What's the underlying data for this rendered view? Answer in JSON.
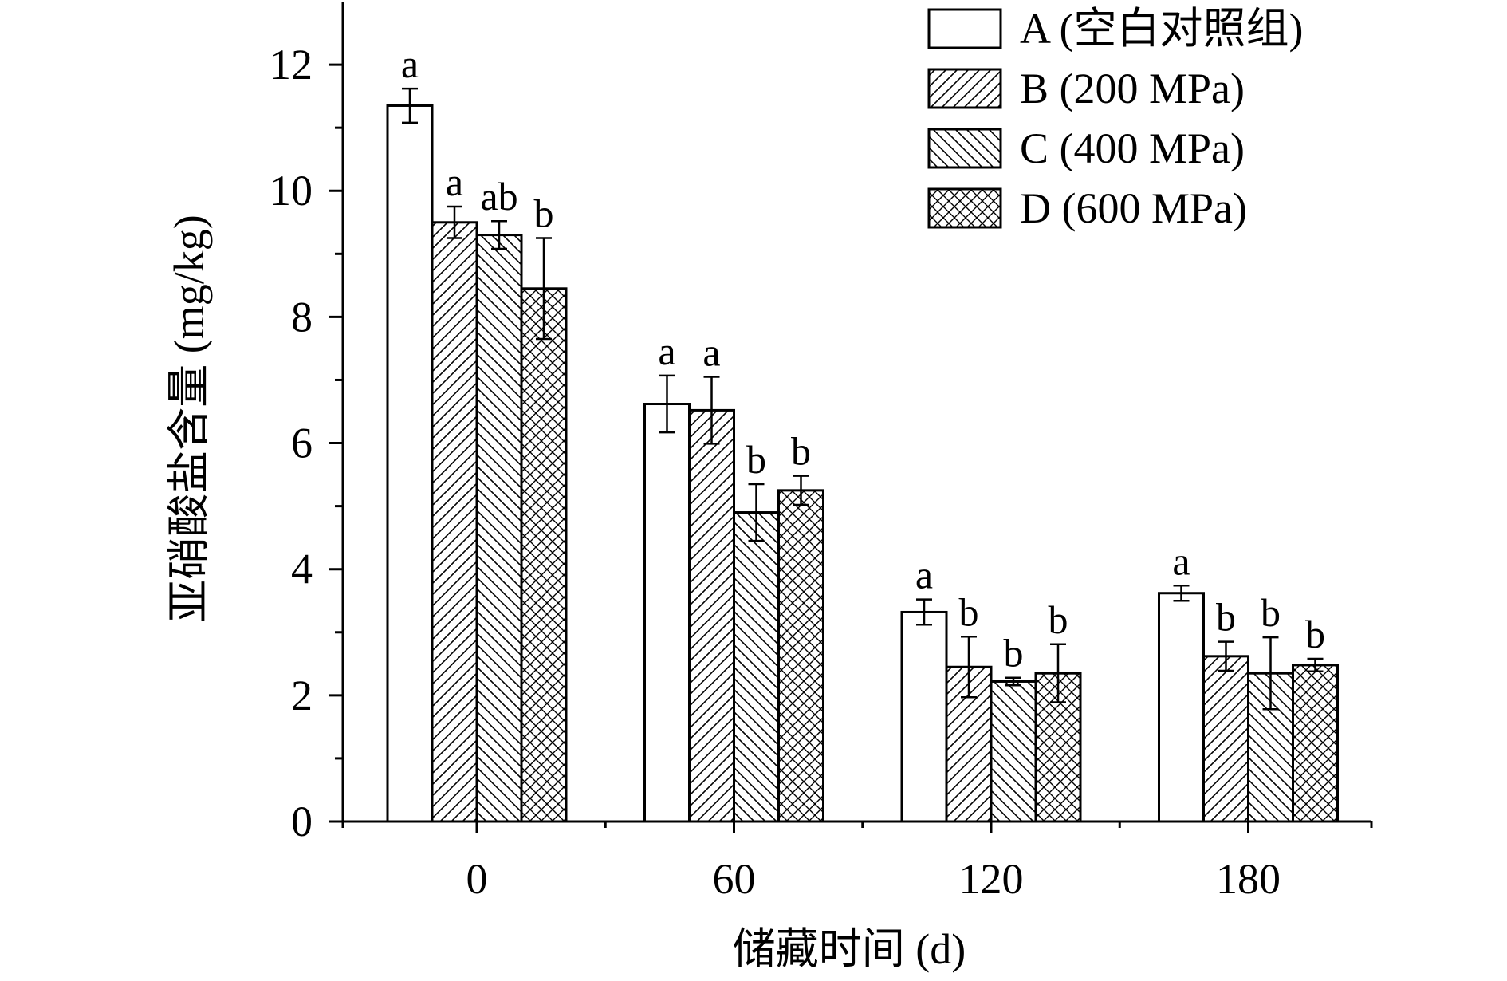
{
  "chart_data": {
    "type": "bar",
    "xlabel": "储藏时间 (d)",
    "ylabel": "亚硝酸盐含量 (mg/kg)",
    "ylim": [
      0,
      13
    ],
    "yticks": [
      0,
      2,
      4,
      6,
      8,
      10,
      12
    ],
    "categories": [
      "0",
      "60",
      "120",
      "180"
    ],
    "series": [
      {
        "name": "A (空白对照组)",
        "pattern": "none",
        "values": [
          11.35,
          6.62,
          3.32,
          3.62
        ],
        "errors": [
          0.27,
          0.45,
          0.2,
          0.12
        ],
        "labels": [
          "a",
          "a",
          "a",
          "a"
        ]
      },
      {
        "name": "B (200 MPa)",
        "pattern": "forward-diagonal",
        "values": [
          9.5,
          6.52,
          2.45,
          2.62
        ],
        "errors": [
          0.25,
          0.53,
          0.48,
          0.23
        ],
        "labels": [
          "a",
          "a",
          "b",
          "b"
        ]
      },
      {
        "name": "C (400 MPa)",
        "pattern": "back-diagonal",
        "values": [
          9.3,
          4.9,
          2.22,
          2.35
        ],
        "errors": [
          0.22,
          0.45,
          0.06,
          0.57
        ],
        "labels": [
          "ab",
          "b",
          "b",
          "b"
        ]
      },
      {
        "name": "D (600 MPa)",
        "pattern": "crosshatch",
        "values": [
          8.45,
          5.25,
          2.35,
          2.48
        ],
        "errors": [
          0.8,
          0.23,
          0.46,
          0.1
        ],
        "labels": [
          "b",
          "b",
          "b",
          "b"
        ]
      }
    ],
    "legend_position": "top-right",
    "grid": false
  }
}
